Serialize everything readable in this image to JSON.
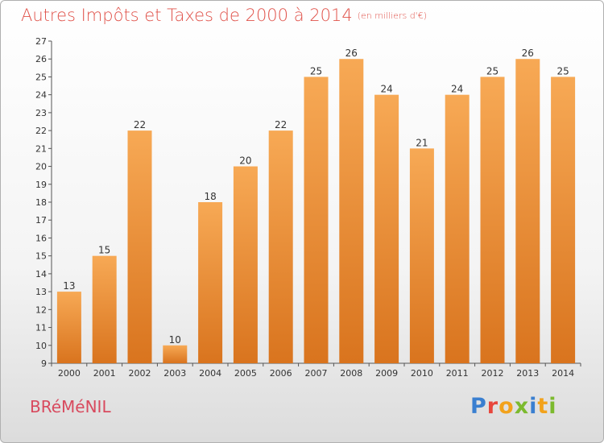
{
  "header": {
    "title": "Autres Impôts et Taxes de 2000 à 2014",
    "unit": "(en milliers d'€)"
  },
  "footer": {
    "town": "BRéMéNIL",
    "logo_text": "Proxiti"
  },
  "colors": {
    "title": "#e0524a",
    "bar_light": "#f5a24e",
    "bar_dark": "#d9741e",
    "town": "#d84a5e"
  },
  "chart_data": {
    "type": "bar",
    "title": "Autres Impôts et Taxes de 2000 à 2014",
    "subtitle": "(en milliers d'€)",
    "categories": [
      "2000",
      "2001",
      "2002",
      "2003",
      "2004",
      "2005",
      "2006",
      "2007",
      "2008",
      "2009",
      "2010",
      "2011",
      "2012",
      "2013",
      "2014"
    ],
    "values": [
      13,
      15,
      22,
      10,
      18,
      20,
      22,
      25,
      26,
      24,
      21,
      24,
      25,
      26,
      25
    ],
    "data_labels": [
      "13",
      "15",
      "22",
      "10",
      "18",
      "20",
      "22",
      "25",
      "26",
      "24",
      "21",
      "24",
      "25",
      "26",
      "25"
    ],
    "ylim": [
      9,
      27
    ],
    "yticks": [
      9,
      10,
      11,
      12,
      13,
      14,
      15,
      16,
      17,
      18,
      19,
      20,
      21,
      22,
      23,
      24,
      25,
      26,
      27
    ],
    "ytick_labels": [
      "9",
      "10",
      "11",
      "12",
      "13",
      "14",
      "15",
      "16",
      "17",
      "18",
      "19",
      "20",
      "21",
      "22",
      "23",
      "24",
      "25",
      "26",
      "27"
    ],
    "grid": false,
    "xlabel": "",
    "ylabel": ""
  }
}
